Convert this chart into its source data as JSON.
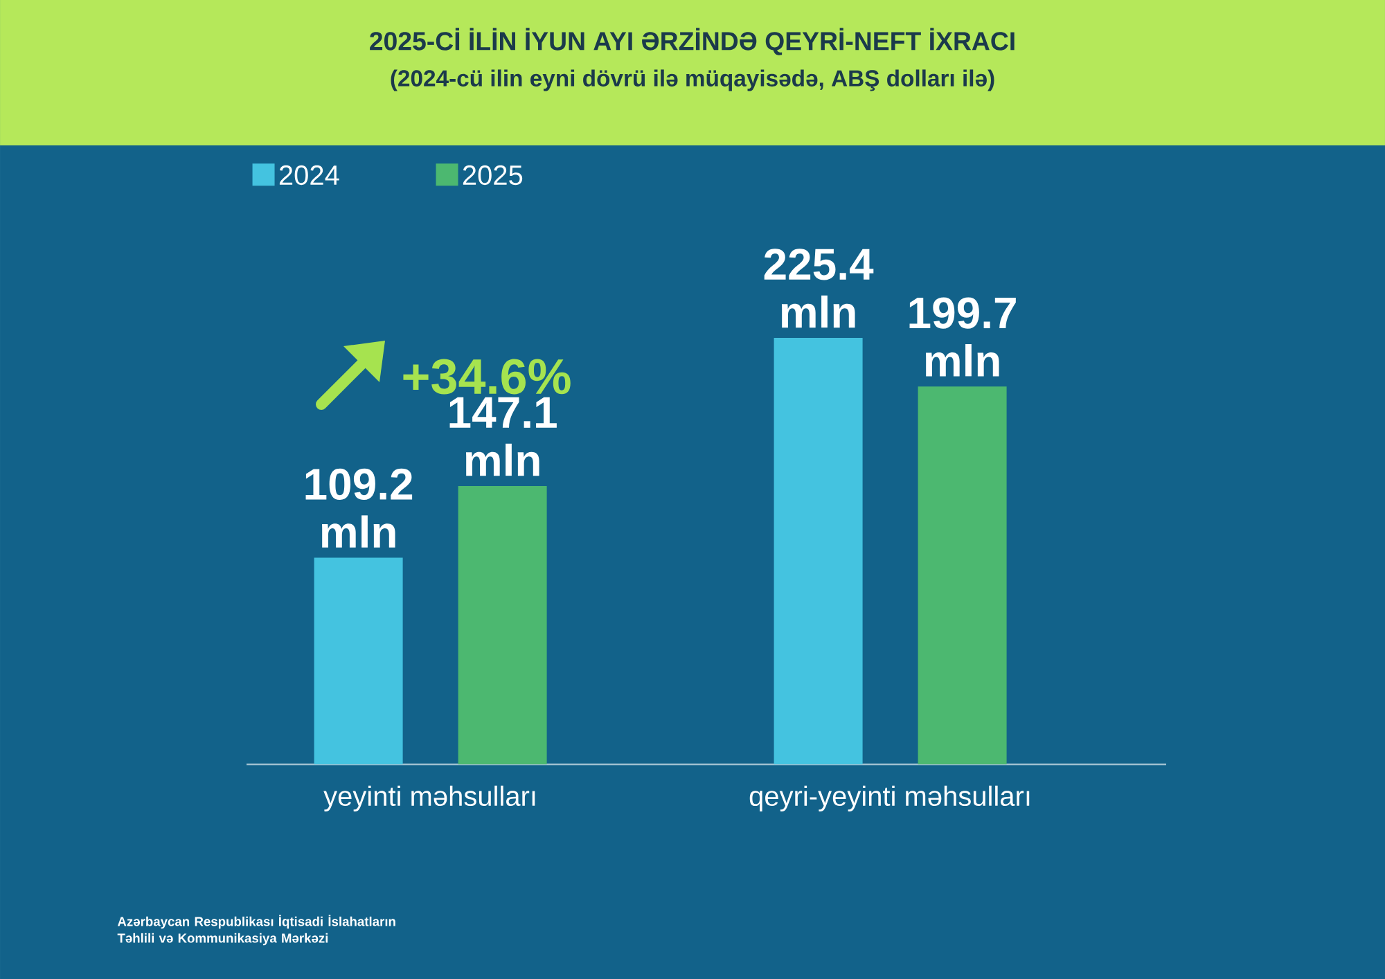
{
  "chart_data": {
    "type": "bar",
    "title": "2025-Cİ İLİN İYUN AYI ƏRZİNDƏ QEYRİ-NEFT İXRACI",
    "subtitle": "(2024-cü ilin eyni dövrü ilə müqayisədə, ABŞ dolları ilə)",
    "categories": [
      "yeyinti məhsulları",
      "qeyri-yeyinti məhsulları"
    ],
    "series": [
      {
        "name": "2024",
        "color": "#44c3e0",
        "values": [
          109.2,
          225.4
        ],
        "value_labels": [
          "109.2 mln",
          "225.4 mln"
        ]
      },
      {
        "name": "2025",
        "color": "#4cb870",
        "values": [
          147.1,
          199.7
        ],
        "value_labels": [
          "147.1 mln",
          "199.7 mln"
        ]
      }
    ],
    "legend": "top left",
    "annotations": [
      "+34.6%",
      "Azərbaycan Respublikası İqtisadi İslahatların Təhlili və Kommunikasiya Mərkəzi"
    ]
  }
}
